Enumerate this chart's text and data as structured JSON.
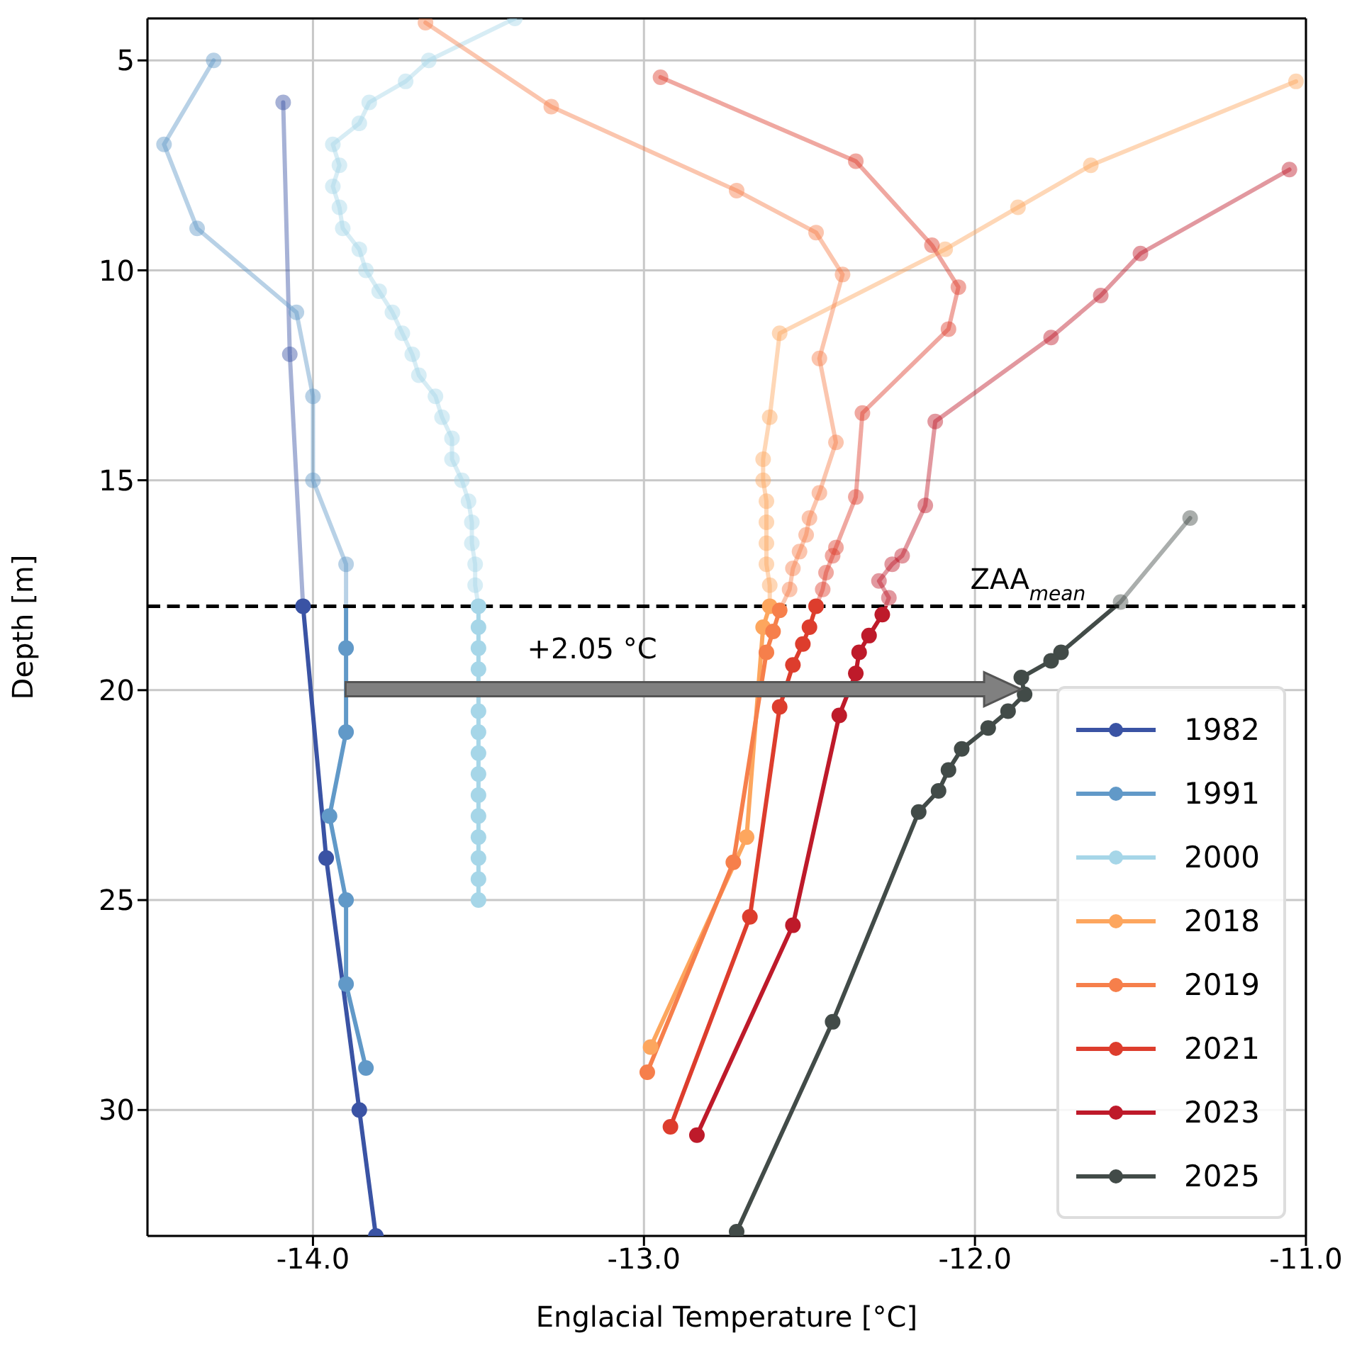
{
  "chart_data": {
    "type": "line",
    "xlabel": "Englacial Temperature [°C]",
    "ylabel": "Depth [m]",
    "xlim": [
      -14.5,
      -11.0
    ],
    "xticks": [
      {
        "value": -14,
        "label": "-14.0"
      },
      {
        "value": -13,
        "label": "-13.0"
      },
      {
        "value": -12,
        "label": "-12.0"
      },
      {
        "value": -11,
        "label": "-11.0"
      }
    ],
    "ylim": [
      33,
      4
    ],
    "yticks": [
      5,
      10,
      15,
      20,
      25,
      30
    ],
    "grid": true,
    "legend": "bottom right",
    "marker": "circle",
    "line_style": "solid",
    "ref_lines": [
      {
        "axis": "y",
        "value": 18,
        "label": "ZAA$_{mean}$",
        "color": "#000000",
        "line_style": "dashed"
      }
    ],
    "annotations": [
      "+2.05 °C"
    ],
    "series": [
      {
        "name": "1982",
        "color": "#3a53a4",
        "x": [
          -14.09,
          -14.07,
          -14.03,
          -13.96,
          -13.86,
          -13.81
        ],
        "values": [
          6,
          12,
          18,
          24,
          30,
          33
        ]
      },
      {
        "name": "1991",
        "color": "#6199c8",
        "x": [
          -14.3,
          -14.45,
          -14.35,
          -14.05,
          -14.0,
          -14.0,
          -13.9,
          -13.9,
          -13.9,
          -13.95,
          -13.9,
          -13.9,
          -13.84
        ],
        "values": [
          5,
          7,
          9,
          11,
          13,
          15,
          17,
          19,
          21,
          23,
          25,
          27,
          29
        ]
      },
      {
        "name": "2000",
        "color": "#a6d6e8",
        "x": [
          -13.39,
          -13.65,
          -13.72,
          -13.83,
          -13.86,
          -13.94,
          -13.92,
          -13.94,
          -13.92,
          -13.91,
          -13.86,
          -13.84,
          -13.8,
          -13.76,
          -13.73,
          -13.7,
          -13.68,
          -13.63,
          -13.61,
          -13.58,
          -13.58,
          -13.55,
          -13.53,
          -13.52,
          -13.52,
          -13.51,
          -13.51,
          -13.5,
          -13.5,
          -13.5,
          -13.5,
          -13.5,
          -13.5,
          -13.5,
          -13.5,
          -13.5,
          -13.5,
          -13.5,
          -13.5,
          -13.5,
          -13.5
        ],
        "values": [
          4,
          5,
          5.5,
          6,
          6.5,
          7,
          7.5,
          8,
          8.5,
          9,
          9.5,
          10,
          10.5,
          11,
          11.5,
          12,
          12.5,
          13,
          13.5,
          14,
          14.5,
          15,
          15.5,
          16,
          16.5,
          17,
          17.5,
          18,
          18.5,
          19,
          19.5,
          20.5,
          21,
          21.5,
          22,
          22.5,
          23,
          23.5,
          24,
          24.5,
          25
        ]
      },
      {
        "name": "2018",
        "color": "#fda65e",
        "x": [
          -11.03,
          -11.65,
          -11.87,
          -12.09,
          -12.59,
          -12.62,
          -12.64,
          -12.64,
          -12.63,
          -12.63,
          -12.63,
          -12.63,
          -12.62,
          -12.62,
          -12.64,
          -12.69,
          -12.98
        ],
        "values": [
          5.5,
          7.5,
          8.5,
          9.5,
          11.5,
          13.5,
          14.5,
          15,
          15.5,
          16,
          16.5,
          17,
          17.5,
          18,
          18.5,
          23.5,
          28.5
        ]
      },
      {
        "name": "2019",
        "color": "#f67f4b",
        "x": [
          -13.66,
          -13.28,
          -12.72,
          -12.48,
          -12.4,
          -12.47,
          -12.42,
          -12.47,
          -12.5,
          -12.51,
          -12.53,
          -12.55,
          -12.56,
          -12.59,
          -12.61,
          -12.63,
          -12.73,
          -12.99
        ],
        "values": [
          4.1,
          6.1,
          8.1,
          9.1,
          10.1,
          12.1,
          14.1,
          15.3,
          15.9,
          16.3,
          16.7,
          17.1,
          17.6,
          18.1,
          18.6,
          19.1,
          24.1,
          29.1
        ]
      },
      {
        "name": "2021",
        "color": "#dd3d2d",
        "x": [
          -12.95,
          -12.36,
          -12.13,
          -12.05,
          -12.08,
          -12.34,
          -12.36,
          -12.42,
          -12.43,
          -12.45,
          -12.46,
          -12.48,
          -12.5,
          -12.52,
          -12.55,
          -12.59,
          -12.68,
          -12.92
        ],
        "values": [
          5.4,
          7.4,
          9.4,
          10.4,
          11.4,
          13.4,
          15.4,
          16.6,
          16.8,
          17.2,
          17.6,
          18.0,
          18.5,
          18.9,
          19.4,
          20.4,
          25.4,
          30.4
        ]
      },
      {
        "name": "2023",
        "color": "#be1a2a",
        "x": [
          -11.05,
          -11.5,
          -11.62,
          -11.77,
          -12.12,
          -12.15,
          -12.22,
          -12.25,
          -12.29,
          -12.26,
          -12.28,
          -12.32,
          -12.35,
          -12.36,
          -12.41,
          -12.55,
          -12.84
        ],
        "values": [
          7.6,
          9.6,
          10.6,
          11.6,
          13.6,
          15.6,
          16.8,
          17.0,
          17.4,
          17.8,
          18.2,
          18.7,
          19.1,
          19.6,
          20.6,
          25.6,
          30.6
        ]
      },
      {
        "name": "2025",
        "color": "#424b48",
        "x": [
          -11.35,
          -11.56,
          -11.74,
          -11.77,
          -11.86,
          -11.85,
          -11.9,
          -11.96,
          -12.04,
          -12.08,
          -12.11,
          -12.17,
          -12.43,
          -12.72
        ],
        "values": [
          15.9,
          17.9,
          19.1,
          19.3,
          19.7,
          20.1,
          20.5,
          20.9,
          21.4,
          21.9,
          22.4,
          22.9,
          27.9,
          32.9
        ]
      }
    ]
  }
}
